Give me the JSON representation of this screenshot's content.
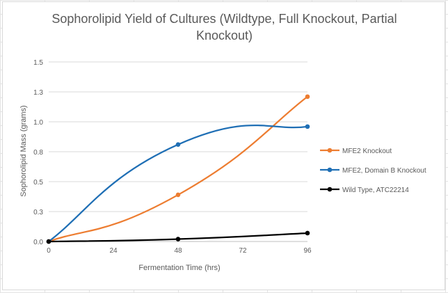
{
  "chart_data": {
    "type": "line",
    "title_line1": "Sophorolipid Yield of Cultures (Wildtype, Full Knockout, Partial",
    "title_line2": "Knockout)",
    "xlabel": "Fermentation Time (hrs)",
    "ylabel": "Sophorolipid Mass (grams)",
    "x_ticks": [
      "0",
      "24",
      "48",
      "72",
      "96"
    ],
    "y_ticks": [
      "0.0",
      "0.3",
      "0.5",
      "0.8",
      "1.0",
      "1.3",
      "1.5"
    ],
    "xlim": [
      0,
      96
    ],
    "ylim": [
      0,
      1.5
    ],
    "grid": true,
    "legend_position": "right",
    "x": [
      0,
      48,
      96
    ],
    "series": [
      {
        "name": "MFE2 Knockout",
        "color": "#ed7d31",
        "values": [
          0,
          0.39,
          1.21
        ]
      },
      {
        "name": "MFE2, Domain B Knockout",
        "color": "#1f6fb5",
        "values": [
          0,
          0.81,
          0.96
        ]
      },
      {
        "name": "Wild Type, ATC22214",
        "color": "#000000",
        "values": [
          0,
          0.02,
          0.07
        ]
      }
    ]
  }
}
